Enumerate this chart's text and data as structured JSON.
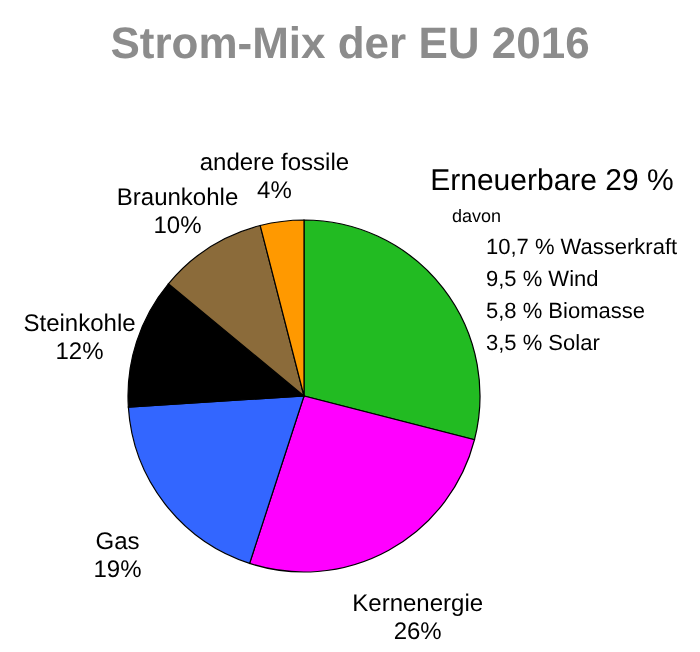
{
  "chart_data": {
    "type": "pie",
    "title": "Strom-Mix der EU 2016",
    "categories": [
      "Erneuerbare",
      "Kernenergie",
      "Gas",
      "Steinkohle",
      "Braunkohle",
      "andere fossile"
    ],
    "values": [
      29,
      26,
      19,
      12,
      10,
      4
    ],
    "colors": [
      "#22bb22",
      "#ff00ff",
      "#3366ff",
      "#000000",
      "#8b6b3a",
      "#ff9900"
    ],
    "value_labels": [
      "29 %",
      "26%",
      "19%",
      "12%",
      "10%",
      "4%"
    ],
    "annotations": [
      "davon",
      "10,7 % Wasserkraft",
      "9,5 % Wind",
      "5,8 % Biomasse",
      "3,5 % Solar"
    ]
  }
}
